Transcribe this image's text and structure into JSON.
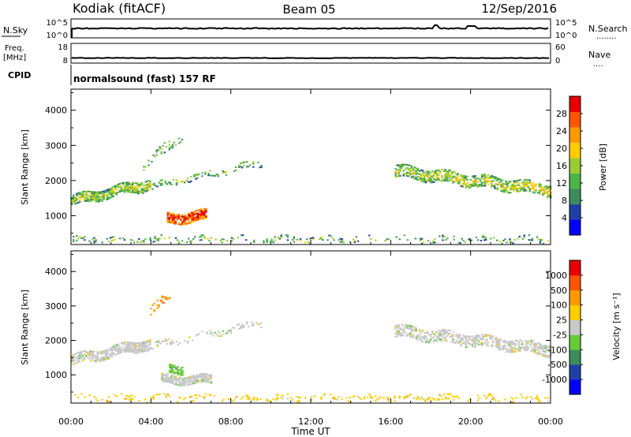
{
  "header": {
    "station": "Kodiak (fitACF)",
    "beam": "Beam 05",
    "date": "12/Sep/2016"
  },
  "strips": {
    "nsky": {
      "label": "N.Sky",
      "ticks": [
        "10^5",
        "10^0"
      ],
      "right_ticks": [
        "10^5",
        "10^0"
      ],
      "right_label": "N.Search",
      "right_line": "........"
    },
    "freq": {
      "label_line1": "Freq.",
      "label_line2": "[MHz]",
      "ticks": [
        "18",
        "8"
      ],
      "right_ticks": [
        "60",
        "0"
      ],
      "right_label": "Nave",
      "right_line": "...."
    },
    "cpid": {
      "label": "CPID",
      "text": "normalsound (fast) 157 RF"
    }
  },
  "chart_data": [
    {
      "type": "heatmap",
      "title": "",
      "xlabel": "",
      "ylabel": "Slant Range [km]",
      "x_range_hours": [
        0,
        24
      ],
      "ylim": [
        180,
        4600
      ],
      "y_ticks": [
        1000,
        2000,
        3000,
        4000
      ],
      "colorbar": {
        "label": "Power [dB]",
        "range": [
          0,
          32
        ],
        "ticks": [
          4,
          8,
          12,
          16,
          20,
          24,
          28
        ],
        "colors": [
          "#0000ff",
          "#1f3fa8",
          "#3d8c5c",
          "#4cb548",
          "#99cc33",
          "#ffcc00",
          "#ff9900",
          "#ff5500",
          "#e60000"
        ]
      },
      "echo_regions": [
        {
          "t0": 0.0,
          "t1": 4.0,
          "r_start": 1400,
          "r_end": 1900,
          "r_thick": 280,
          "density": 0.78,
          "base_level": 10
        },
        {
          "t0": 3.0,
          "t1": 9.5,
          "r_start": 1700,
          "r_end": 2500,
          "r_thick": 180,
          "density": 0.28,
          "base_level": 8
        },
        {
          "t0": 4.8,
          "t1": 6.8,
          "r_start": 900,
          "r_end": 1000,
          "r_thick": 300,
          "density": 0.85,
          "base_level": 24
        },
        {
          "t0": 3.6,
          "t1": 5.6,
          "r_start": 2400,
          "r_end": 3300,
          "r_thick": 300,
          "density": 0.22,
          "base_level": 9
        },
        {
          "t0": 16.2,
          "t1": 24.0,
          "r_start": 2250,
          "r_end": 1700,
          "r_thick": 320,
          "density": 0.62,
          "base_level": 11
        },
        {
          "t0": 0.0,
          "t1": 24.0,
          "r_start": 300,
          "r_end": 300,
          "r_thick": 140,
          "density": 0.18,
          "base_level": 8
        }
      ]
    },
    {
      "type": "heatmap",
      "title": "",
      "xlabel": "Time UT",
      "ylabel": "Slant Range [km]",
      "x_range_hours": [
        0,
        24
      ],
      "x_ticks": [
        "00:00",
        "04:00",
        "08:00",
        "12:00",
        "16:00",
        "20:00",
        "00:00"
      ],
      "ylim": [
        180,
        4600
      ],
      "y_ticks": [
        1000,
        2000,
        3000,
        4000
      ],
      "colorbar": {
        "label": "Velocity [m s⁻¹]",
        "tick_labels": [
          "1000",
          "500",
          "100",
          "25",
          "-25",
          "-100",
          "-500",
          "-1000"
        ],
        "colors": [
          "#0000ff",
          "#1f3fa8",
          "#3d8c5c",
          "#66cc33",
          "#c8c8c8",
          "#ffcc00",
          "#ff9900",
          "#ff5500",
          "#e60000"
        ]
      },
      "echo_regions": [
        {
          "t0": 0.0,
          "t1": 4.0,
          "r_start": 1400,
          "r_end": 1900,
          "r_thick": 280,
          "density": 0.75,
          "base_level": 4
        },
        {
          "t0": 3.0,
          "t1": 9.5,
          "r_start": 1700,
          "r_end": 2500,
          "r_thick": 180,
          "density": 0.28,
          "base_level": 4
        },
        {
          "t0": 4.5,
          "t1": 7.0,
          "r_start": 850,
          "r_end": 850,
          "r_thick": 250,
          "density": 0.85,
          "base_level": 4
        },
        {
          "t0": 4.9,
          "t1": 5.6,
          "r_start": 1150,
          "r_end": 1150,
          "r_thick": 250,
          "density": 0.85,
          "base_level": 3
        },
        {
          "t0": 3.8,
          "t1": 5.0,
          "r_start": 2800,
          "r_end": 3300,
          "r_thick": 250,
          "density": 0.3,
          "base_level": 6
        },
        {
          "t0": 16.2,
          "t1": 24.0,
          "r_start": 2250,
          "r_end": 1700,
          "r_thick": 320,
          "density": 0.62,
          "base_level": 4
        },
        {
          "t0": 0.0,
          "t1": 24.0,
          "r_start": 300,
          "r_end": 300,
          "r_thick": 140,
          "density": 0.2,
          "base_level": 5
        }
      ]
    }
  ]
}
